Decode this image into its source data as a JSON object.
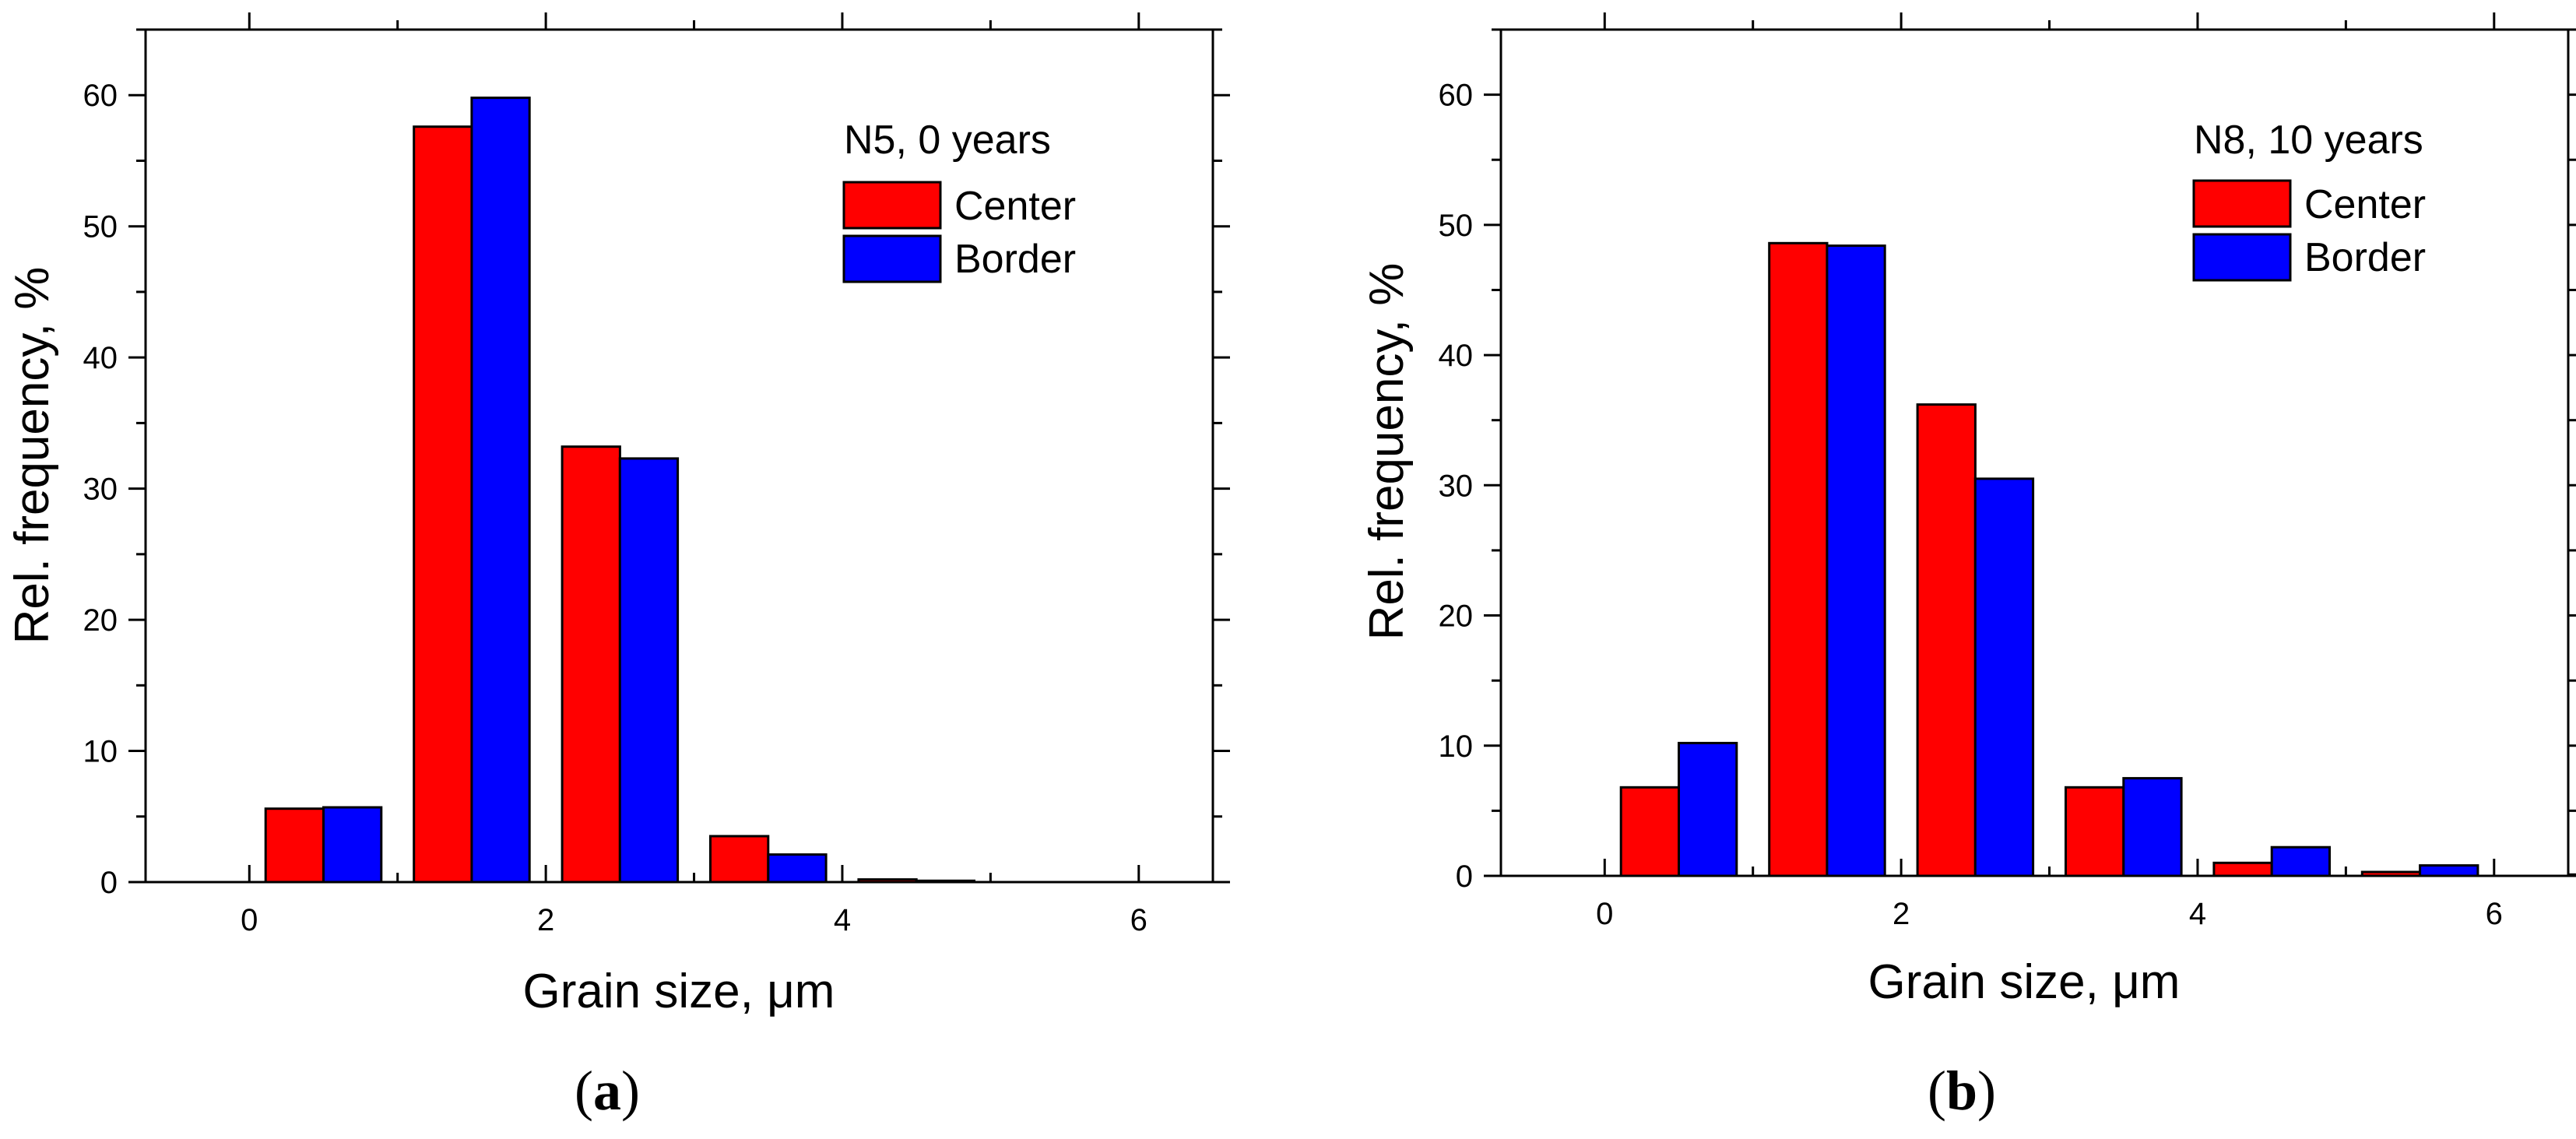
{
  "chart_data": [
    {
      "type": "bar",
      "panel_label": "a",
      "title": "N5, 0 years",
      "xlabel": "Grain size, μm",
      "ylabel": "Rel. frequency, %",
      "xlim": [
        -0.7,
        6.5
      ],
      "ylim": [
        0,
        65
      ],
      "xticks": [
        0,
        2,
        4,
        6
      ],
      "yticks": [
        0,
        10,
        20,
        30,
        40,
        50,
        60
      ],
      "legend_position": "top-right",
      "bin_centers": [
        0.5,
        1.5,
        2.5,
        3.5,
        4.5
      ],
      "series": [
        {
          "name": "Center",
          "color": "#ff0000",
          "values": [
            5.6,
            57.6,
            33.2,
            3.5,
            0.2
          ]
        },
        {
          "name": "Border",
          "color": "#0000ff",
          "values": [
            5.7,
            59.8,
            32.3,
            2.1,
            0.1
          ]
        }
      ]
    },
    {
      "type": "bar",
      "panel_label": "b",
      "title": "N8, 10 years",
      "xlabel": "Grain size, μm",
      "ylabel": "Rel. frequency, %",
      "xlim": [
        -0.7,
        6.5
      ],
      "ylim": [
        0,
        65
      ],
      "xticks": [
        0,
        2,
        4,
        6
      ],
      "yticks": [
        0,
        10,
        20,
        30,
        40,
        50,
        60
      ],
      "legend_position": "top-right",
      "bin_centers": [
        0.5,
        1.5,
        2.5,
        3.5,
        4.5,
        5.5,
        6.5
      ],
      "series": [
        {
          "name": "Center",
          "color": "#ff0000",
          "values": [
            6.8,
            48.6,
            36.2,
            6.8,
            1.0,
            0.3,
            0.0
          ]
        },
        {
          "name": "Border",
          "color": "#0000ff",
          "values": [
            10.2,
            48.4,
            30.5,
            7.5,
            2.2,
            0.8,
            0.1
          ]
        }
      ]
    }
  ]
}
